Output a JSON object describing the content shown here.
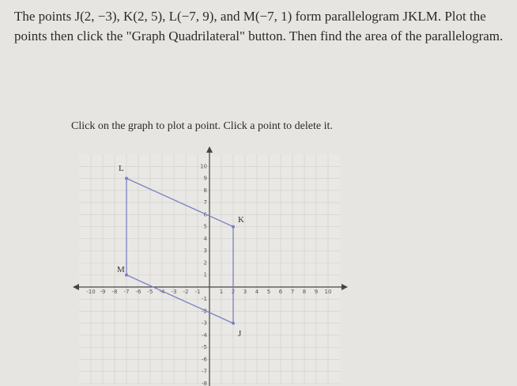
{
  "problem": {
    "text": "The points J(2, −3), K(2, 5), L(−7, 9), and M(−7, 1) form parallelogram JKLM. Plot the points then click the \"Graph Quadrilateral\" button. Then find the area of the parallelogram.",
    "instruction": "Click on the graph to plot a point. Click a point to delete it."
  },
  "graph": {
    "xlim": [
      -11,
      11
    ],
    "ylim": [
      -8,
      11
    ],
    "xticks": [
      -10,
      -9,
      -8,
      -7,
      -6,
      -5,
      -4,
      -3,
      -2,
      -1,
      1,
      2,
      3,
      4,
      5,
      6,
      7,
      8,
      9,
      10
    ],
    "yticks": [
      -8,
      -7,
      -6,
      -5,
      -4,
      -3,
      -2,
      -1,
      1,
      2,
      3,
      4,
      5,
      6,
      7,
      8,
      9,
      10
    ],
    "points": [
      {
        "label": "J",
        "x": 2,
        "y": -3
      },
      {
        "label": "K",
        "x": 2,
        "y": 5
      },
      {
        "label": "L",
        "x": -7,
        "y": 9
      },
      {
        "label": "M",
        "x": -7,
        "y": 1
      }
    ],
    "color": "#7b7fc4"
  }
}
